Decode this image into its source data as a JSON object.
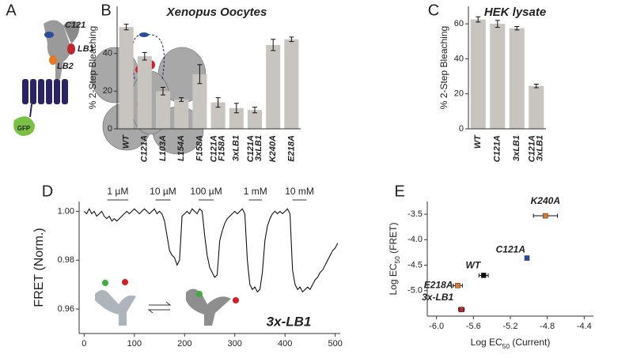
{
  "panel_labels": [
    "A",
    "B",
    "C",
    "D",
    "E"
  ],
  "illustration": {
    "labels": [
      "C121",
      "LB1",
      "LB2",
      "GFP"
    ]
  },
  "chart_data": [
    {
      "type": "bar",
      "title": "Xenopus Oocytes",
      "ylabel": "% 2-Step Bleaching",
      "categories": [
        [
          "WT"
        ],
        [
          "C121A"
        ],
        [
          "L103A"
        ],
        [
          "L154A"
        ],
        [
          "F158A"
        ],
        [
          "C121A",
          "F158A"
        ],
        [
          "3xLB1"
        ],
        [
          "C121A",
          "3xLB1"
        ],
        [
          "K240A"
        ],
        [
          "E218A"
        ]
      ],
      "category_colors": [
        [
          "#000000"
        ],
        [
          "#2b4aa0"
        ],
        [
          "#c0272d"
        ],
        [
          "#c0272d"
        ],
        [
          "#c0272d"
        ],
        [
          "#2b4aa0",
          "#c0272d"
        ],
        [
          "#c0272d"
        ],
        [
          "#2b4aa0",
          "#c0272d"
        ],
        [
          "#e87722"
        ],
        [
          "#e87722"
        ]
      ],
      "values": [
        54,
        38.5,
        20,
        15.5,
        29,
        14,
        11,
        10,
        44.5,
        47.5
      ],
      "errors": [
        1.5,
        2,
        2,
        1,
        5,
        2.5,
        2.5,
        1.5,
        3,
        1.2
      ],
      "color": "#c8c4c0",
      "ylim": [
        0,
        65
      ],
      "yticks": [
        0,
        20,
        40
      ]
    },
    {
      "type": "bar",
      "title": "HEK lysate",
      "ylabel": "% 2-Step Bleaching",
      "categories": [
        [
          "WT"
        ],
        [
          "C121A"
        ],
        [
          "3xLB1"
        ],
        [
          "C121A",
          "3xLB1"
        ]
      ],
      "category_colors": [
        [
          "#000000"
        ],
        [
          "#2b4aa0"
        ],
        [
          "#c0272d"
        ],
        [
          "#2b4aa0",
          "#c0272d"
        ]
      ],
      "values": [
        62.5,
        60,
        57.5,
        24.5
      ],
      "errors": [
        1.5,
        2,
        1,
        1
      ],
      "color": "#c8c4c0",
      "ylim": [
        0,
        70
      ],
      "yticks": [
        0,
        20,
        40,
        60
      ]
    },
    {
      "type": "line",
      "ylabel": "FRET (Norm.)",
      "annotation": "3x-LB1",
      "color": "#111111",
      "x": [
        0,
        5,
        10,
        15,
        20,
        25,
        30,
        35,
        40,
        45,
        50,
        55,
        60,
        65,
        70,
        75,
        80,
        85,
        90,
        95,
        100,
        105,
        110,
        115,
        120,
        125,
        130,
        135,
        140,
        145,
        150,
        155,
        160,
        165,
        170,
        175,
        180,
        185,
        190,
        195,
        200,
        205,
        210,
        215,
        220,
        225,
        230,
        235,
        240,
        245,
        250,
        255,
        260,
        265,
        270,
        275,
        280,
        285,
        290,
        295,
        300,
        305,
        310,
        315,
        320,
        325,
        330,
        335,
        340,
        345,
        350,
        355,
        360,
        365,
        370,
        375,
        380,
        385,
        390,
        395,
        400,
        405,
        410,
        415,
        420,
        425,
        430,
        435,
        440,
        445,
        450,
        455,
        460,
        465,
        470,
        475,
        480,
        485,
        490,
        495,
        500,
        505
      ],
      "values": [
        1.0,
        0.999,
        1.001,
        0.999,
        1.0,
        0.998,
        0.999,
        1.0,
        0.998,
        0.997,
        0.998,
        0.996,
        0.997,
        0.996,
        0.997,
        0.998,
        0.999,
        1.0,
        0.999,
        1.0,
        1.001,
        1.0,
        0.999,
        1.0,
        1.001,
        1.0,
        0.999,
        1.0,
        1.001,
        0.999,
        1.0,
        0.999,
        0.996,
        0.99,
        0.984,
        0.982,
        0.981,
        0.978,
        0.98,
        0.998,
        0.999,
        1.0,
        0.999,
        1.001,
        1.0,
        0.999,
        1.001,
        1.0,
        0.99,
        0.982,
        0.977,
        0.975,
        0.973,
        0.974,
        0.988,
        0.992,
        0.995,
        0.997,
        0.998,
        0.999,
        1.0,
        0.999,
        1.0,
        1.001,
        0.999,
        0.98,
        0.97,
        0.968,
        0.969,
        0.967,
        0.968,
        0.975,
        0.988,
        0.994,
        0.997,
        0.999,
        1.0,
        0.999,
        1.0,
        0.999,
        1.0,
        1.001,
        0.999,
        0.976,
        0.97,
        0.968,
        0.969,
        0.967,
        0.968,
        0.969,
        0.968,
        0.97,
        0.972,
        0.973,
        0.975,
        0.976,
        0.978,
        0.98,
        0.982,
        0.984,
        0.985,
        0.987
      ],
      "stimuli": [
        {
          "label": "1 µM",
          "start": 46,
          "end": 88
        },
        {
          "label": "10 µM",
          "start": 142,
          "end": 172
        },
        {
          "label": "100 µM",
          "start": 228,
          "end": 258
        },
        {
          "label": "1 mM",
          "start": 328,
          "end": 354
        },
        {
          "label": "10 mM",
          "start": 415,
          "end": 443
        }
      ],
      "xlim": [
        -10,
        510
      ],
      "xticks": [
        0,
        100,
        200,
        300,
        400,
        500
      ],
      "ylim": [
        0.95,
        1.004
      ],
      "yticks": [
        0.96,
        0.98,
        {
          "value": 1,
          "label": "1.00"
        }
      ]
    },
    {
      "type": "scatter",
      "xlabel": [
        "Log EC",
        "50",
        " (Current)"
      ],
      "ylabel": [
        "Log EC",
        "50",
        " (FRET)"
      ],
      "series": [
        {
          "name": "K240A",
          "color": "#e87722",
          "x": [
            -4.82
          ],
          "values": [
            -3.53
          ],
          "x_errors": [
            0.13
          ],
          "errors": [
            0.04
          ]
        },
        {
          "name": "C121A",
          "color": "#2b4aa0",
          "x": [
            -5.02
          ],
          "values": [
            -4.36
          ],
          "x_errors": [
            0.02
          ],
          "errors": [
            0.02
          ]
        },
        {
          "name": "WT",
          "color": "#111111",
          "x": [
            -5.49
          ],
          "values": [
            -4.7
          ],
          "x_errors": [
            0.05
          ],
          "errors": [
            0.04
          ]
        },
        {
          "name": "E218A",
          "color": "#e87722",
          "x": [
            -5.77
          ],
          "values": [
            -4.9
          ],
          "x_errors": [
            0.05
          ],
          "errors": [
            0.02
          ]
        },
        {
          "name": "3x-LB1",
          "color": "#c0272d",
          "x": [
            -5.73
          ],
          "values": [
            -5.37
          ],
          "x_errors": [
            0.03
          ],
          "errors": [
            0.04
          ]
        }
      ],
      "xlim": [
        -6.1,
        -4.3
      ],
      "xticks": [
        {
          "value": -6,
          "label": "-6.0"
        },
        -5.6,
        -5.2,
        -4.8,
        -4.4
      ],
      "ylim": [
        -5.5,
        -3.25
      ],
      "yticks": [
        -3.5,
        {
          "value": -4,
          "label": "-4.0"
        },
        -4.5,
        {
          "value": -5,
          "label": "-5.0"
        }
      ]
    }
  ]
}
